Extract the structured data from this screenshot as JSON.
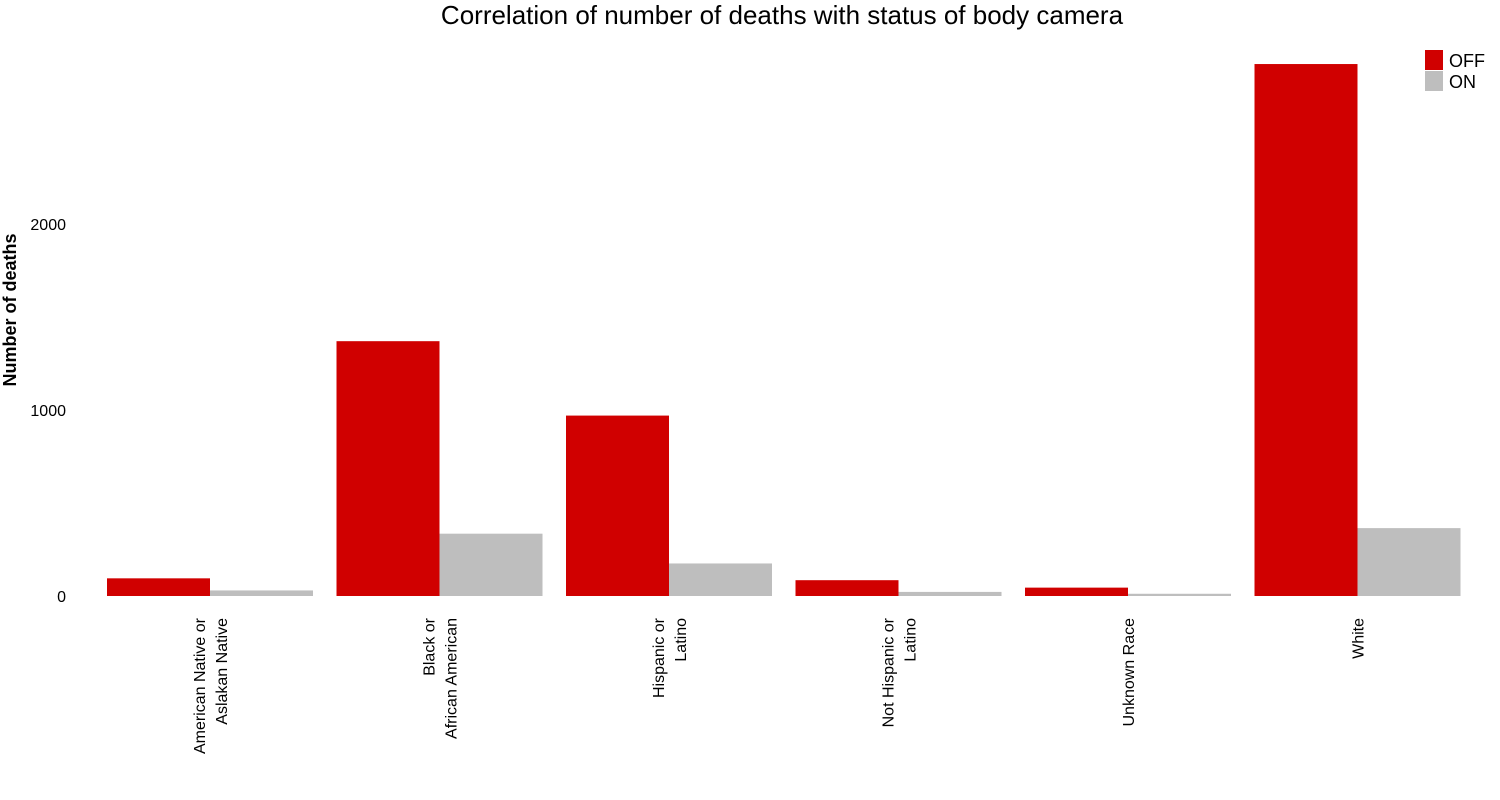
{
  "chart_data": {
    "type": "bar",
    "title": "Correlation of number of deaths with status of body camera",
    "xlabel": "",
    "ylabel": "Number of deaths",
    "ylim": [
      0,
      2900
    ],
    "yticks": [
      0,
      1000,
      2000
    ],
    "categories": [
      [
        "American Native or",
        "Aslakan Native"
      ],
      [
        "Black or",
        "African American"
      ],
      [
        "Hispanic or",
        "Latino"
      ],
      [
        "Not Hispanic or",
        "Latino"
      ],
      [
        "Unknown Race"
      ],
      [
        "White"
      ]
    ],
    "series": [
      {
        "name": "OFF",
        "color": "#d00000",
        "values": [
          95,
          1370,
          970,
          85,
          45,
          2860
        ]
      },
      {
        "name": "ON",
        "color": "#bebebe",
        "values": [
          30,
          335,
          175,
          22,
          12,
          365
        ]
      }
    ],
    "legend": "top-right",
    "grid": false
  }
}
